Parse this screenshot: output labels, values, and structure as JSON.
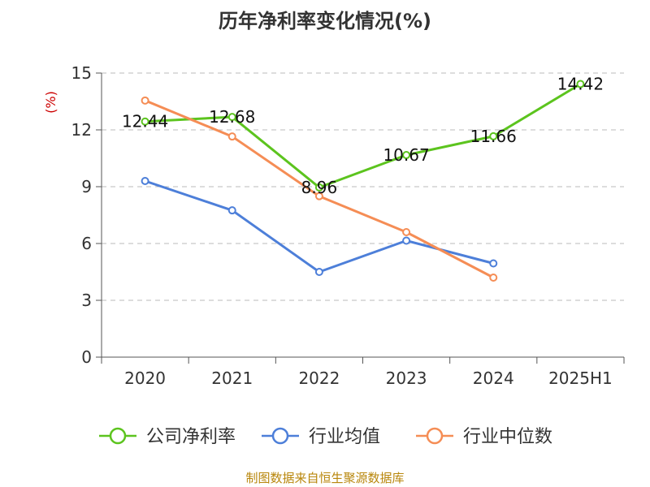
{
  "chart_data": {
    "type": "line",
    "title": "历年净利率变化情况(%)",
    "ylabel": "(%)",
    "categories": [
      "2020",
      "2021",
      "2022",
      "2023",
      "2024",
      "2025H1"
    ],
    "yticks": [
      "0",
      "3",
      "6",
      "9",
      "12",
      "15"
    ],
    "ylim": [
      0,
      15
    ],
    "grid": true,
    "legend_position": "bottom",
    "series": [
      {
        "name": "公司净利率",
        "color": "#5cc41e",
        "values": [
          12.44,
          12.68,
          8.96,
          10.67,
          11.66,
          14.42
        ],
        "labels": [
          "12.44",
          "12.68",
          "8.96",
          "10.67",
          "11.66",
          "14.42"
        ]
      },
      {
        "name": "行业均值",
        "color": "#4d7fd9",
        "values": [
          9.3,
          7.75,
          4.5,
          6.15,
          4.95,
          null
        ]
      },
      {
        "name": "行业中位数",
        "color": "#f58d55",
        "values": [
          13.55,
          11.65,
          8.5,
          6.6,
          4.2,
          null
        ]
      }
    ]
  },
  "source": "制图数据来自恒生聚源数据库"
}
